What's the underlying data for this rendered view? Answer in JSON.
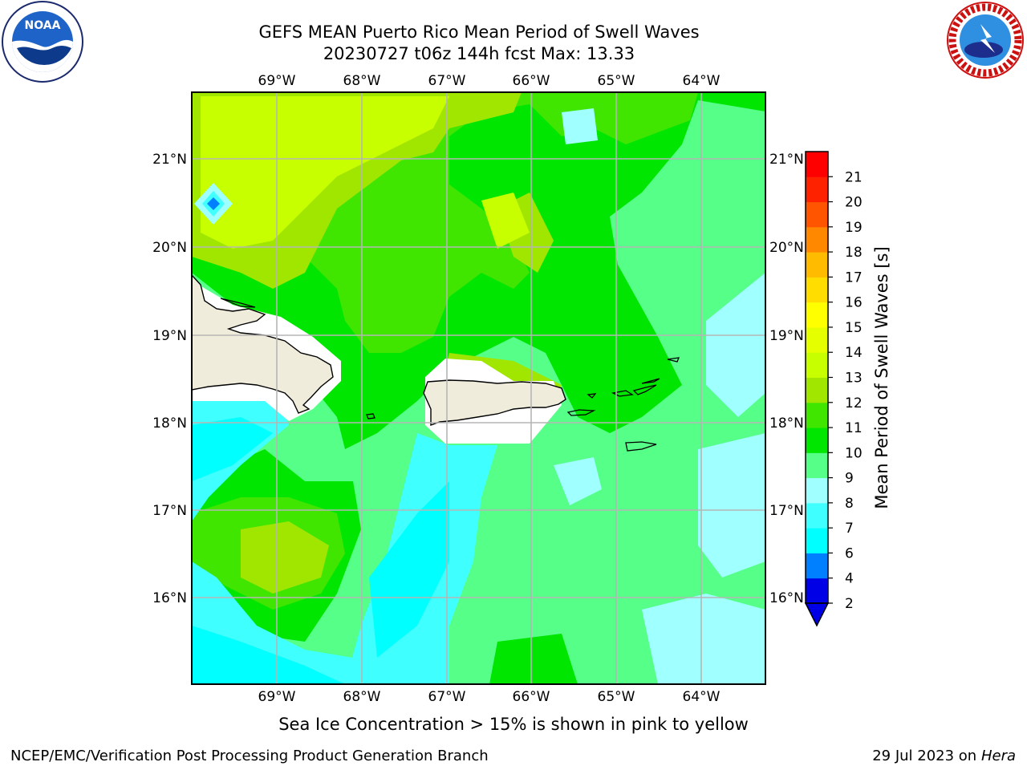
{
  "header": {
    "title_line1": "GEFS MEAN Puerto Rico Mean Period of Swell Waves",
    "title_line2": "20230727 t06z 144h fcst   Max: 13.33"
  },
  "map": {
    "lon_labels": [
      "69°W",
      "68°W",
      "67°W",
      "66°W",
      "65°W",
      "64°W"
    ],
    "lat_labels": [
      "21°N",
      "20°N",
      "19°N",
      "18°N",
      "17°N",
      "16°N"
    ],
    "land_color": "#efecdc",
    "grid_color": "#b5b5b5"
  },
  "colorbar": {
    "label": "Mean Period of Swell Waves [s]",
    "tick_labels": [
      "2",
      "4",
      "6",
      "7",
      "8",
      "9",
      "10",
      "11",
      "12",
      "13",
      "14",
      "15",
      "16",
      "17",
      "18",
      "19",
      "20",
      "21"
    ],
    "colors": [
      "#0000e6",
      "#0080ff",
      "#00ffff",
      "#40ffff",
      "#a0ffff",
      "#55ff88",
      "#00e600",
      "#40e600",
      "#a0e600",
      "#c8ff00",
      "#e6ff00",
      "#ffff00",
      "#ffdd00",
      "#ffbb00",
      "#ff8800",
      "#ff5500",
      "#ff2200",
      "#ff0000"
    ],
    "extend": "min"
  },
  "footer": {
    "caption": "Sea Ice Concentration > 15% is shown in pink to yellow",
    "branch": "NCEP/EMC/Verification Post Processing Product Generation Branch",
    "date": "29 Jul 2023 on",
    "machine": "Hera"
  },
  "logos": {
    "noaa_text": "NOAA",
    "nws_text": "NATIONAL WEATHER SERVICE"
  }
}
